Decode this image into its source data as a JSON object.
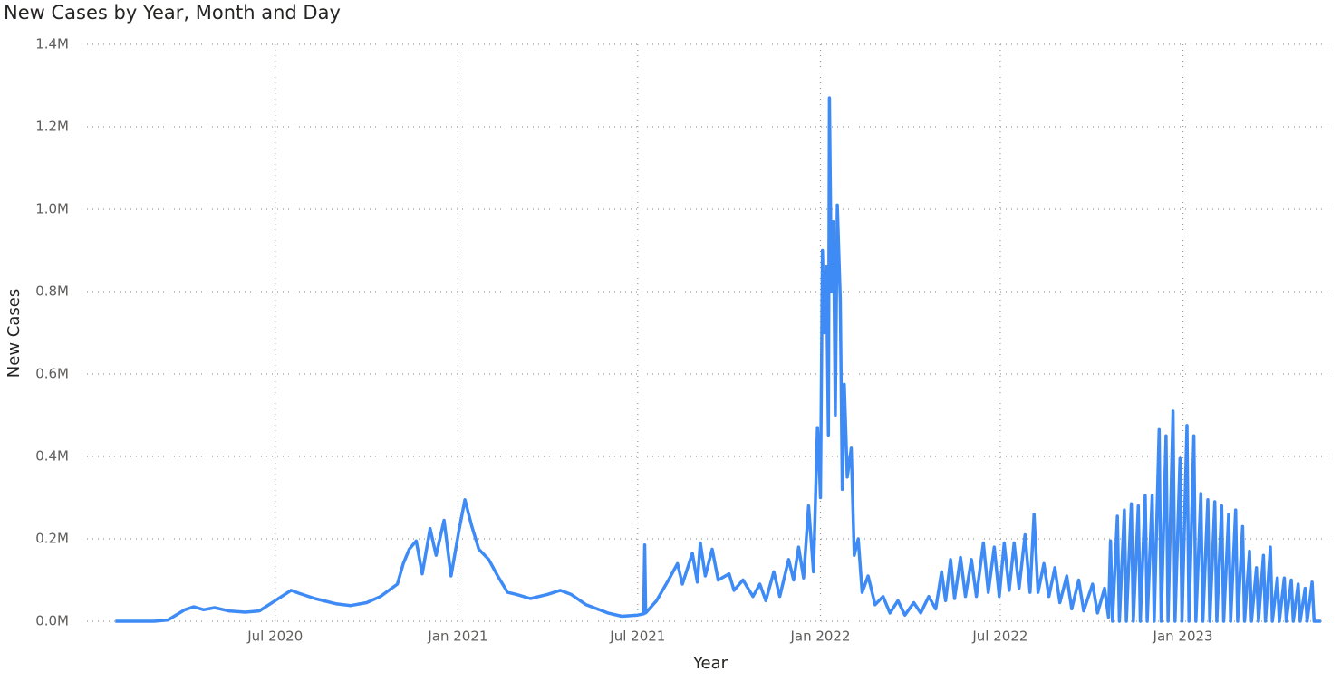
{
  "chart_data": {
    "type": "line",
    "title": "New Cases by Year, Month and Day",
    "x_label": "Year",
    "y_label": "New Cases",
    "color": "#3f8bf5",
    "grid": true,
    "xlim": [
      "2019-12-19",
      "2023-05-31"
    ],
    "xticks": [
      {
        "value": "2020-07-01",
        "label": "Jul 2020"
      },
      {
        "value": "2021-01-01",
        "label": "Jan 2021"
      },
      {
        "value": "2021-07-01",
        "label": "Jul 2021"
      },
      {
        "value": "2022-01-01",
        "label": "Jan 2022"
      },
      {
        "value": "2022-07-01",
        "label": "Jul 2022"
      },
      {
        "value": "2023-01-01",
        "label": "Jan 2023"
      }
    ],
    "ylim": [
      0,
      1400000
    ],
    "yticks": [
      {
        "value": 0,
        "label": "0.0M"
      },
      {
        "value": 200000,
        "label": "0.2M"
      },
      {
        "value": 400000,
        "label": "0.4M"
      },
      {
        "value": 600000,
        "label": "0.6M"
      },
      {
        "value": 800000,
        "label": "0.8M"
      },
      {
        "value": 1000000,
        "label": "1.0M"
      },
      {
        "value": 1200000,
        "label": "1.2M"
      },
      {
        "value": 1400000,
        "label": "1.4M"
      }
    ],
    "x": [
      "2020-01-22",
      "2020-03-01",
      "2020-03-15",
      "2020-04-01",
      "2020-04-10",
      "2020-04-20",
      "2020-05-01",
      "2020-05-15",
      "2020-06-01",
      "2020-06-15",
      "2020-07-01",
      "2020-07-17",
      "2020-07-25",
      "2020-08-10",
      "2020-09-01",
      "2020-09-15",
      "2020-10-01",
      "2020-10-15",
      "2020-11-01",
      "2020-11-07",
      "2020-11-13",
      "2020-11-20",
      "2020-11-26",
      "2020-12-04",
      "2020-12-10",
      "2020-12-18",
      "2020-12-25",
      "2021-01-02",
      "2021-01-08",
      "2021-01-15",
      "2021-01-22",
      "2021-02-01",
      "2021-02-10",
      "2021-02-20",
      "2021-03-01",
      "2021-03-15",
      "2021-04-01",
      "2021-04-14",
      "2021-04-25",
      "2021-05-10",
      "2021-06-01",
      "2021-06-15",
      "2021-07-01",
      "2021-07-07",
      "2021-07-08",
      "2021-07-09",
      "2021-07-20",
      "2021-08-01",
      "2021-08-10",
      "2021-08-15",
      "2021-08-25",
      "2021-08-30",
      "2021-09-02",
      "2021-09-07",
      "2021-09-14",
      "2021-09-20",
      "2021-10-01",
      "2021-10-06",
      "2021-10-15",
      "2021-10-25",
      "2021-11-01",
      "2021-11-07",
      "2021-11-15",
      "2021-11-21",
      "2021-11-30",
      "2021-12-05",
      "2021-12-10",
      "2021-12-15",
      "2021-12-20",
      "2021-12-25",
      "2021-12-29",
      "2021-12-31",
      "2022-01-01",
      "2022-01-03",
      "2022-01-05",
      "2022-01-07",
      "2022-01-09",
      "2022-01-10",
      "2022-01-12",
      "2022-01-14",
      "2022-01-16",
      "2022-01-18",
      "2022-01-21",
      "2022-01-23",
      "2022-01-25",
      "2022-01-28",
      "2022-02-01",
      "2022-02-04",
      "2022-02-08",
      "2022-02-12",
      "2022-02-18",
      "2022-02-25",
      "2022-03-05",
      "2022-03-12",
      "2022-03-20",
      "2022-03-27",
      "2022-04-05",
      "2022-04-12",
      "2022-04-20",
      "2022-04-27",
      "2022-05-03",
      "2022-05-07",
      "2022-05-12",
      "2022-05-16",
      "2022-05-22",
      "2022-05-27",
      "2022-06-02",
      "2022-06-07",
      "2022-06-14",
      "2022-06-19",
      "2022-06-25",
      "2022-06-30",
      "2022-07-05",
      "2022-07-10",
      "2022-07-15",
      "2022-07-20",
      "2022-07-26",
      "2022-07-31",
      "2022-08-04",
      "2022-08-08",
      "2022-08-14",
      "2022-08-19",
      "2022-08-25",
      "2022-08-30",
      "2022-09-06",
      "2022-09-11",
      "2022-09-18",
      "2022-09-23",
      "2022-10-02",
      "2022-10-07",
      "2022-10-14",
      "2022-10-18",
      "2022-10-20",
      "2022-10-22",
      "2022-10-27",
      "2022-10-29",
      "2022-11-03",
      "2022-11-05",
      "2022-11-10",
      "2022-11-12",
      "2022-11-17",
      "2022-11-19",
      "2022-11-24",
      "2022-11-26",
      "2022-12-01",
      "2022-12-03",
      "2022-12-08",
      "2022-12-10",
      "2022-12-15",
      "2022-12-17",
      "2022-12-22",
      "2022-12-24",
      "2022-12-29",
      "2022-12-31",
      "2023-01-05",
      "2023-01-07",
      "2023-01-12",
      "2023-01-14",
      "2023-01-19",
      "2023-01-21",
      "2023-01-26",
      "2023-01-28",
      "2023-02-02",
      "2023-02-04",
      "2023-02-09",
      "2023-02-11",
      "2023-02-16",
      "2023-02-18",
      "2023-02-23",
      "2023-02-25",
      "2023-03-02",
      "2023-03-04",
      "2023-03-09",
      "2023-03-11",
      "2023-03-16",
      "2023-03-18",
      "2023-03-23",
      "2023-03-25",
      "2023-03-30",
      "2023-04-01",
      "2023-04-06",
      "2023-04-08",
      "2023-04-13",
      "2023-04-15",
      "2023-04-20",
      "2023-04-22",
      "2023-04-27",
      "2023-04-29",
      "2023-05-04",
      "2023-05-06",
      "2023-05-11",
      "2023-05-13",
      "2023-05-20"
    ],
    "values": [
      0,
      0,
      3000,
      28000,
      35000,
      28000,
      33000,
      25000,
      22000,
      25000,
      50000,
      75000,
      68000,
      55000,
      42000,
      38000,
      45000,
      60000,
      90000,
      140000,
      175000,
      195000,
      115000,
      225000,
      160000,
      245000,
      110000,
      220000,
      295000,
      230000,
      175000,
      150000,
      110000,
      70000,
      65000,
      55000,
      65000,
      75000,
      65000,
      40000,
      20000,
      12000,
      15000,
      18000,
      185000,
      20000,
      50000,
      100000,
      140000,
      90000,
      165000,
      95000,
      190000,
      110000,
      175000,
      100000,
      115000,
      75000,
      100000,
      60000,
      90000,
      50000,
      120000,
      60000,
      150000,
      100000,
      180000,
      105000,
      280000,
      120000,
      470000,
      370000,
      300000,
      900000,
      700000,
      860000,
      450000,
      1270000,
      800000,
      970000,
      500000,
      1010000,
      780000,
      320000,
      575000,
      350000,
      420000,
      160000,
      200000,
      70000,
      110000,
      40000,
      60000,
      20000,
      50000,
      15000,
      45000,
      20000,
      60000,
      30000,
      120000,
      50000,
      150000,
      55000,
      155000,
      60000,
      150000,
      60000,
      190000,
      70000,
      180000,
      60000,
      190000,
      75000,
      190000,
      80000,
      210000,
      70000,
      260000,
      70000,
      140000,
      60000,
      130000,
      45000,
      110000,
      30000,
      100000,
      25000,
      90000,
      20000,
      80000,
      10000,
      195000,
      0,
      255000,
      0,
      270000,
      0,
      285000,
      0,
      280000,
      0,
      305000,
      0,
      305000,
      0,
      465000,
      0,
      450000,
      0,
      510000,
      0,
      395000,
      0,
      475000,
      0,
      450000,
      0,
      310000,
      0,
      295000,
      0,
      290000,
      0,
      280000,
      0,
      260000,
      0,
      270000,
      0,
      230000,
      0,
      170000,
      0,
      130000,
      0,
      160000,
      0,
      180000,
      0,
      105000,
      0,
      105000,
      0,
      100000,
      0,
      90000,
      0,
      80000,
      0,
      95000,
      0,
      0
    ]
  }
}
